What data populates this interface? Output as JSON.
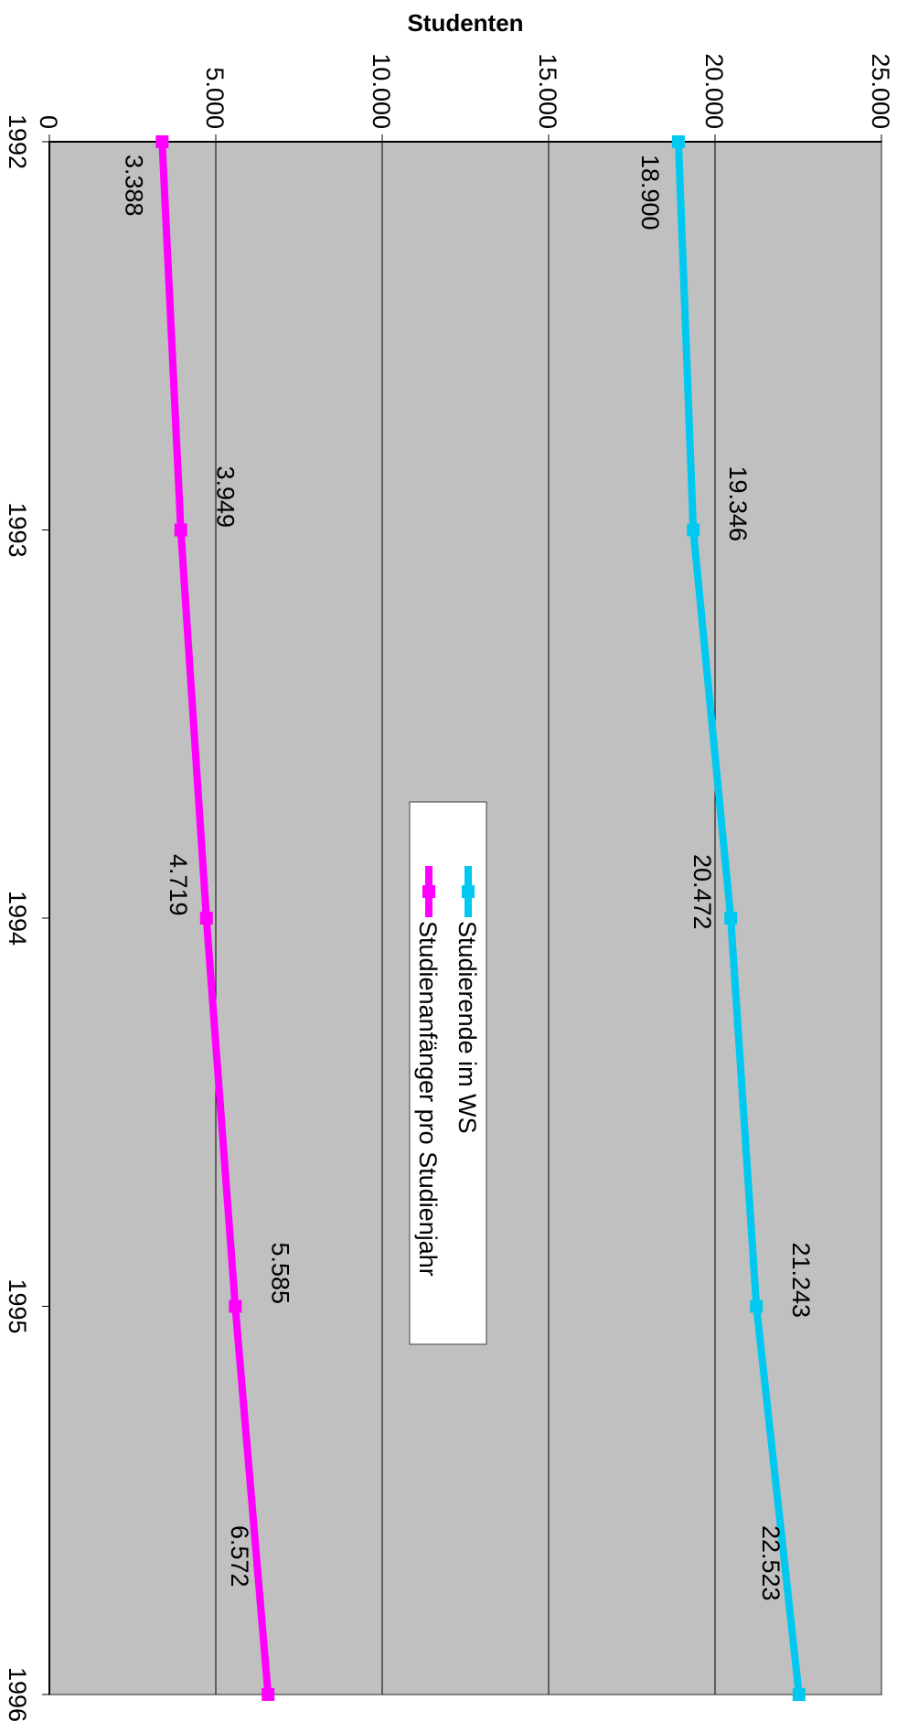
{
  "chart_data": {
    "type": "line",
    "orientation": "rotated-90-clockwise",
    "title": "Studenten",
    "x": [
      "1992",
      "1993",
      "1994",
      "1995",
      "1996"
    ],
    "x_value_ticks": [
      "0",
      "5.000",
      "10.000",
      "15.000",
      "20.000",
      "25.000"
    ],
    "ylim": [
      0,
      25000
    ],
    "grid": true,
    "legend_position": "center",
    "series": [
      {
        "name": "Studierende im WS",
        "color": "#00c8f0",
        "values": [
          18900,
          19346,
          20472,
          21243,
          22523
        ],
        "labels": [
          "18.900",
          "19.346",
          "20.472",
          "21.243",
          "22.523"
        ]
      },
      {
        "name": "Studienanfänger pro Studienjahr",
        "color": "#ff00ff",
        "values": [
          3388,
          3949,
          4719,
          5585,
          6572
        ],
        "labels": [
          "3.388",
          "3.949",
          "4.719",
          "5.585",
          "6.572"
        ]
      }
    ],
    "plot_background": "#c0c0c0"
  }
}
